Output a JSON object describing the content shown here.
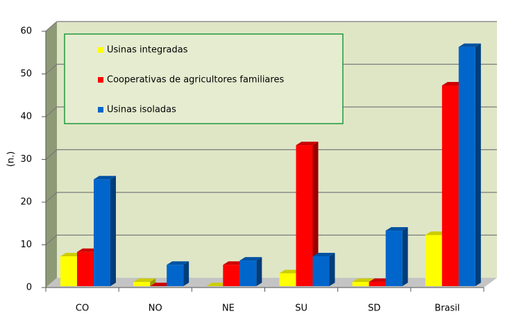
{
  "chart_data": {
    "type": "bar",
    "ylabel": "(n.)",
    "categories": [
      "CO",
      "NO",
      "NE",
      "SU",
      "SD",
      "Brasil"
    ],
    "series": [
      {
        "name": "Usinas integradas",
        "color": "#ffff00",
        "values": [
          7,
          1,
          0,
          3,
          1,
          12
        ]
      },
      {
        "name": "Cooperativas de agricultores familiares",
        "color": "#ff0000",
        "values": [
          8,
          0,
          5,
          33,
          1,
          47
        ]
      },
      {
        "name": "Usinas isoladas",
        "color": "#0066cc",
        "values": [
          25,
          5,
          6,
          7,
          13,
          56
        ]
      }
    ],
    "ylim": [
      0,
      60
    ],
    "yticks": [
      0,
      10,
      20,
      30,
      40,
      50,
      60
    ],
    "grid": true
  }
}
